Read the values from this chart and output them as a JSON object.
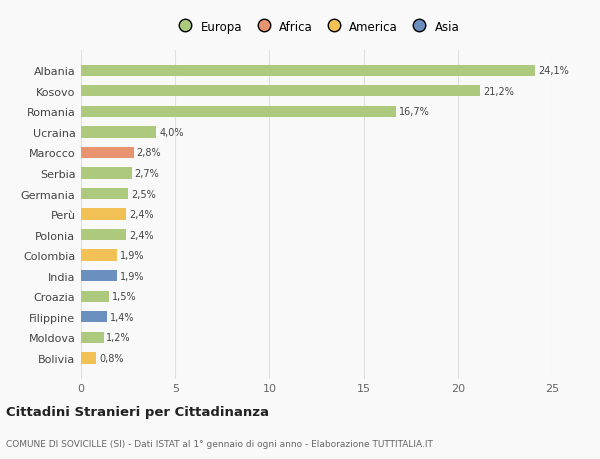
{
  "categories": [
    "Albania",
    "Kosovo",
    "Romania",
    "Ucraina",
    "Marocco",
    "Serbia",
    "Germania",
    "Perù",
    "Polonia",
    "Colombia",
    "India",
    "Croazia",
    "Filippine",
    "Moldova",
    "Bolivia"
  ],
  "values": [
    24.1,
    21.2,
    16.7,
    4.0,
    2.8,
    2.7,
    2.5,
    2.4,
    2.4,
    1.9,
    1.9,
    1.5,
    1.4,
    1.2,
    0.8
  ],
  "labels": [
    "24,1%",
    "21,2%",
    "16,7%",
    "4,0%",
    "2,8%",
    "2,7%",
    "2,5%",
    "2,4%",
    "2,4%",
    "1,9%",
    "1,9%",
    "1,5%",
    "1,4%",
    "1,2%",
    "0,8%"
  ],
  "colors": [
    "#adc97e",
    "#adc97e",
    "#adc97e",
    "#adc97e",
    "#e89470",
    "#adc97e",
    "#adc97e",
    "#f2c155",
    "#adc97e",
    "#f2c155",
    "#6b8fbe",
    "#adc97e",
    "#6b8fbe",
    "#adc97e",
    "#f2c155"
  ],
  "legend_labels": [
    "Europa",
    "Africa",
    "America",
    "Asia"
  ],
  "legend_colors": [
    "#adc97e",
    "#e89470",
    "#f2c155",
    "#6b8fbe"
  ],
  "title": "Cittadini Stranieri per Cittadinanza",
  "subtitle": "COMUNE DI SOVICILLE (SI) - Dati ISTAT al 1° gennaio di ogni anno - Elaborazione TUTTITALIA.IT",
  "xlim": [
    0,
    25
  ],
  "xticks": [
    0,
    5,
    10,
    15,
    20,
    25
  ],
  "background_color": "#f9f9f9",
  "grid_color": "#e0e0e0"
}
